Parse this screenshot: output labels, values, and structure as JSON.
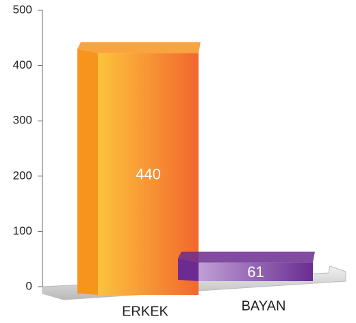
{
  "chart_data": {
    "type": "bar3d",
    "categories": [
      "ERKEK",
      "BAYAN"
    ],
    "values": [
      440,
      61
    ],
    "colors": [
      "#f7941d",
      "#6a2c91"
    ],
    "ylim": [
      0,
      500
    ],
    "yticks": [
      0,
      100,
      200,
      300,
      400,
      500
    ]
  }
}
